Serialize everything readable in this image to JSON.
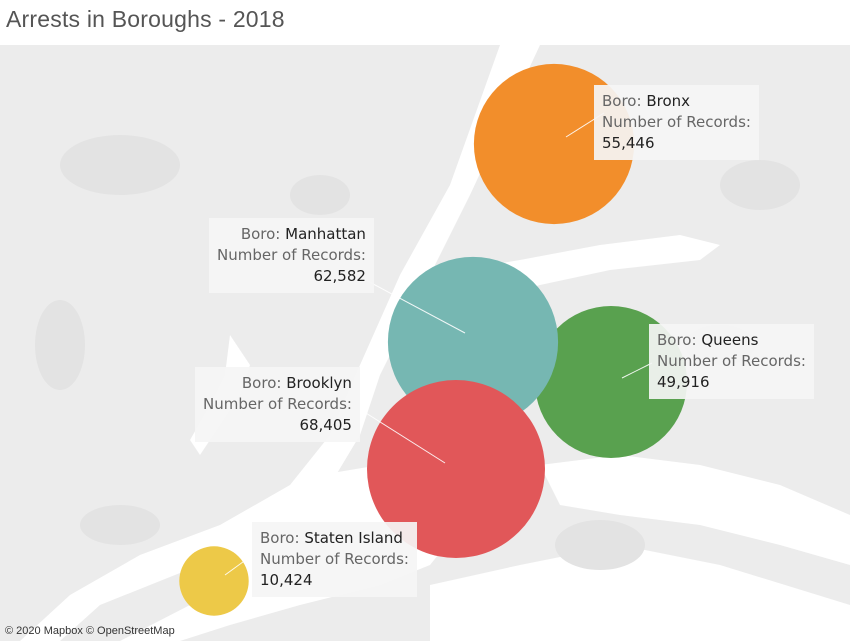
{
  "title": "Arrests in Boroughs - 2018",
  "attribution": "© 2020 Mapbox © OpenStreetMap",
  "labels": {
    "boro": "Boro:",
    "records": "Number of Records:"
  },
  "boroughs": [
    {
      "name": "Bronx",
      "records": "55,446",
      "color": "#f28e2b"
    },
    {
      "name": "Manhattan",
      "records": "62,582",
      "color": "#76b7b2"
    },
    {
      "name": "Queens",
      "records": "49,916",
      "color": "#59a14f"
    },
    {
      "name": "Brooklyn",
      "records": "68,405",
      "color": "#e15759"
    },
    {
      "name": "Staten Island",
      "records": "10,424",
      "color": "#edc948"
    }
  ]
}
